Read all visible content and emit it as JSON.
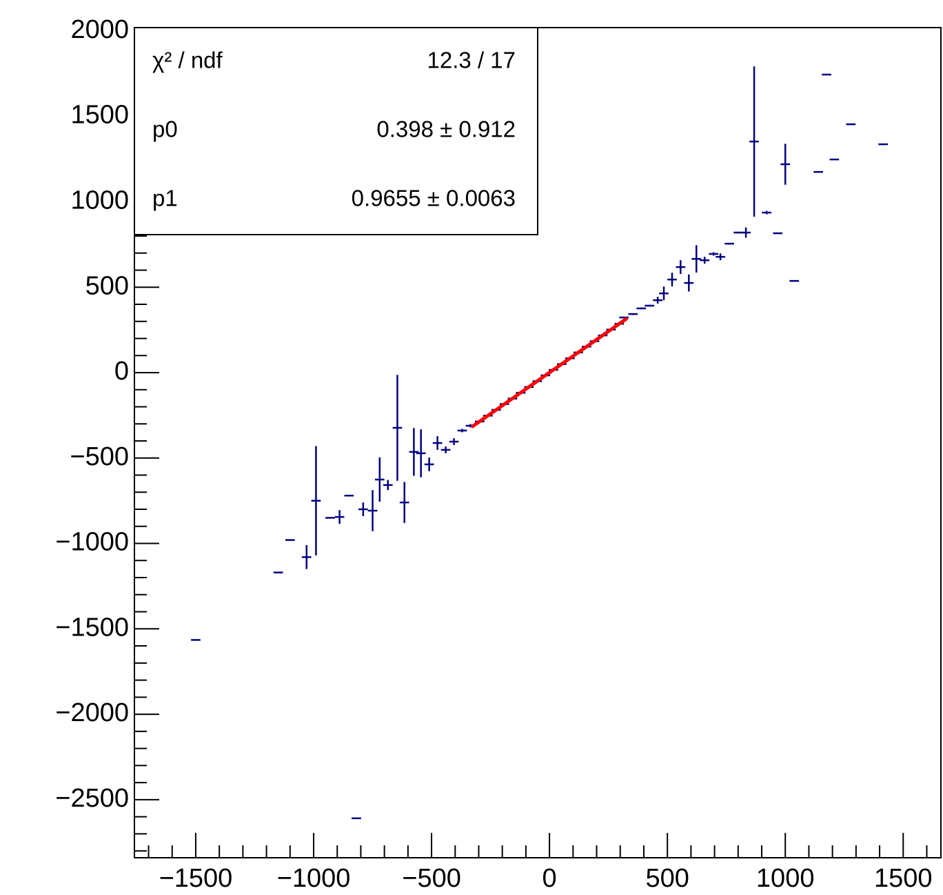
{
  "chart_data": {
    "type": "errorbar",
    "xlim": [
      -1760,
      1660
    ],
    "ylim": [
      -2840,
      2020
    ],
    "xticks": [
      {
        "value": -1500,
        "label": "−1500"
      },
      {
        "value": -1000,
        "label": "−1000"
      },
      {
        "value": -500,
        "label": "−500"
      },
      0,
      500,
      1000,
      1500
    ],
    "yticks": [
      {
        "value": -2500,
        "label": "−2500"
      },
      {
        "value": -2000,
        "label": "−2000"
      },
      {
        "value": -1500,
        "label": "−1500"
      },
      {
        "value": -1000,
        "label": "−1000"
      },
      {
        "value": -500,
        "label": "−500"
      },
      0,
      500,
      1000,
      1500,
      2000
    ],
    "xminorticks": [
      -1700,
      -1600,
      -1400,
      -1300,
      -1200,
      -1100,
      -900,
      -800,
      -700,
      -600,
      -400,
      -300,
      -200,
      -100,
      100,
      200,
      300,
      400,
      600,
      700,
      800,
      900,
      1100,
      1200,
      1300,
      1400,
      1600
    ],
    "yminorticks": [
      -2800,
      -2700,
      -2600,
      -2400,
      -2300,
      -2200,
      -2100,
      -1900,
      -1800,
      -1700,
      -1600,
      -1400,
      -1300,
      -1200,
      -1100,
      -900,
      -800,
      -700,
      -600,
      -400,
      -300,
      -200,
      -100,
      100,
      200,
      300,
      400,
      600,
      700,
      800,
      900,
      1100,
      1200,
      1300,
      1400,
      1600,
      1700,
      1800,
      1900
    ],
    "series": [
      {
        "color": "#000080",
        "xerr": 20,
        "x": [
          -1500,
          -1150,
          -1100,
          -1030,
          -990,
          -930,
          -890,
          -850,
          -819,
          -790,
          -750,
          -720,
          -685,
          -645,
          -615,
          -575,
          -545,
          -510,
          -475,
          -440,
          -405,
          -370,
          -335,
          -296,
          -261,
          -226,
          -191,
          -157,
          -122,
          -87,
          -52,
          -17,
          17,
          52,
          87,
          122,
          157,
          191,
          226,
          261,
          296,
          316,
          354,
          389,
          424,
          459,
          485,
          520,
          556,
          591,
          623,
          658,
          696,
          725,
          763,
          801,
          833,
          868,
          921,
          968,
          1000,
          1038,
          1140,
          1175,
          1208,
          1278,
          1415
        ],
        "values": [
          -1565,
          -1170,
          -980,
          -1080,
          -750,
          -850,
          -845,
          -720,
          -2609,
          -800,
          -808,
          -626,
          -658,
          -323,
          -760,
          -464,
          -472,
          -537,
          -412,
          -452,
          -404,
          -339,
          -311,
          -286,
          -252,
          -218,
          -184,
          -152,
          -118,
          -84,
          -50,
          -16,
          16,
          50,
          84,
          118,
          152,
          184,
          218,
          252,
          286,
          323,
          343,
          376,
          392,
          424,
          464,
          545,
          618,
          525,
          666,
          658,
          695,
          678,
          755,
          820,
          820,
          1353,
          937,
          816,
          1220,
          537,
          1175,
          1745,
          1248,
          1454,
          1337
        ],
        "yerr": [
          0,
          0,
          0,
          70,
          320,
          0,
          40,
          0,
          0,
          40,
          120,
          130,
          30,
          310,
          120,
          140,
          140,
          40,
          40,
          20,
          20,
          10,
          10,
          5,
          5,
          5,
          5,
          5,
          5,
          5,
          5,
          5,
          5,
          5,
          5,
          5,
          5,
          5,
          5,
          5,
          5,
          5,
          5,
          5,
          5,
          20,
          40,
          40,
          40,
          50,
          80,
          20,
          10,
          20,
          5,
          5,
          30,
          440,
          10,
          0,
          120,
          0,
          0,
          0,
          0,
          0,
          0
        ]
      }
    ],
    "fit": {
      "color": "#ff0000",
      "xrange": [
        -330,
        330
      ],
      "p0": 0.398,
      "p1": 0.9655
    },
    "stats": [
      {
        "name": "χ² / ndf",
        "label": "12.3 / 17"
      },
      {
        "name": "p0",
        "label": "0.398 ± 0.912"
      },
      {
        "name": "p1",
        "label": "0.9655 ± 0.0063"
      }
    ]
  }
}
